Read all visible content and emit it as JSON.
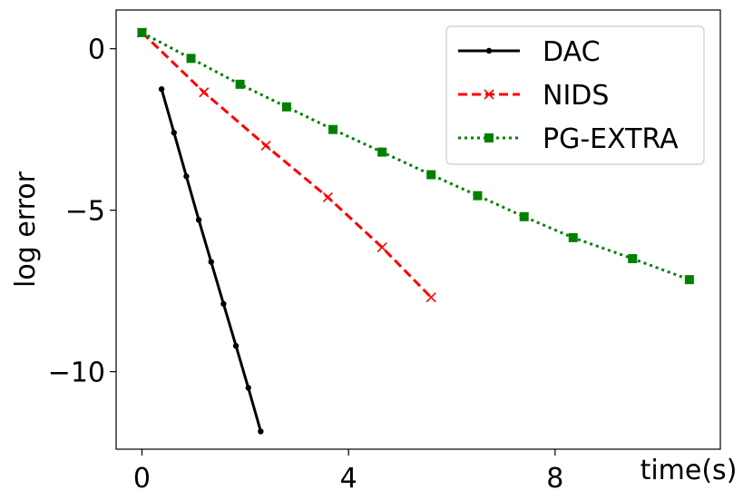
{
  "chart_data": {
    "type": "line",
    "xlabel": "time(s)",
    "ylabel": "log error",
    "xlim": [
      -0.5,
      11.2
    ],
    "ylim": [
      -12.4,
      1.2
    ],
    "xticks": [
      0,
      4,
      8
    ],
    "yticks": [
      0,
      -5,
      -10
    ],
    "xtick_labels": [
      "0",
      "4",
      "8"
    ],
    "ytick_labels": [
      "0",
      "−5",
      "−10"
    ],
    "grid": false,
    "legend_position": "top-right",
    "series": [
      {
        "name": "DAC",
        "color": "#000000",
        "line_style": "solid",
        "marker": "dot",
        "x": [
          0.38,
          0.62,
          0.86,
          1.1,
          1.34,
          1.58,
          1.82,
          2.06,
          2.3
        ],
        "y": [
          -1.25,
          -2.6,
          -3.95,
          -5.3,
          -6.6,
          -7.9,
          -9.2,
          -10.5,
          -11.85
        ]
      },
      {
        "name": "NIDS",
        "color": "#ff0000",
        "line_style": "dashed",
        "marker": "x",
        "x": [
          0.0,
          1.2,
          2.4,
          3.6,
          4.65,
          5.6
        ],
        "y": [
          0.5,
          -1.35,
          -3.0,
          -4.6,
          -6.15,
          -7.7
        ]
      },
      {
        "name": "PG-EXTRA",
        "color": "#008000",
        "line_style": "dotted",
        "marker": "square",
        "x": [
          0.0,
          0.95,
          1.9,
          2.8,
          3.7,
          4.65,
          5.6,
          6.5,
          7.4,
          8.35,
          9.5,
          10.6
        ],
        "y": [
          0.5,
          -0.3,
          -1.1,
          -1.8,
          -2.5,
          -3.2,
          -3.9,
          -4.55,
          -5.2,
          -5.85,
          -6.5,
          -7.15
        ]
      }
    ]
  }
}
